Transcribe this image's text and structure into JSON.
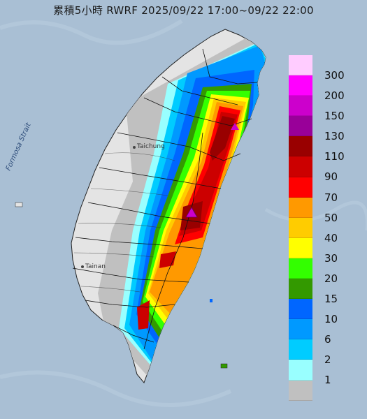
{
  "title": "累積5小時 RWRF 2025/09/22 17:00~09/22 22:00",
  "map_labels": {
    "strait": "Formosa Strait",
    "city_north": "Taichung",
    "city_south": "Tainan"
  },
  "legend": [
    {
      "color": "#ffccff",
      "label": "300"
    },
    {
      "color": "#ff00ff",
      "label": "200"
    },
    {
      "color": "#cc00cc",
      "label": "150"
    },
    {
      "color": "#990099",
      "label": "130"
    },
    {
      "color": "#990000",
      "label": "110"
    },
    {
      "color": "#cc0000",
      "label": "90"
    },
    {
      "color": "#ff0000",
      "label": "70"
    },
    {
      "color": "#ff9900",
      "label": "50"
    },
    {
      "color": "#ffcc00",
      "label": "40"
    },
    {
      "color": "#ffff00",
      "label": "30"
    },
    {
      "color": "#33ff00",
      "label": "20"
    },
    {
      "color": "#339900",
      "label": "15"
    },
    {
      "color": "#0066ff",
      "label": "10"
    },
    {
      "color": "#0099ff",
      "label": "6"
    },
    {
      "color": "#00ccff",
      "label": "2"
    },
    {
      "color": "#99ffff",
      "label": "1"
    },
    {
      "color": "#c0c0c0",
      "label": ""
    }
  ]
}
